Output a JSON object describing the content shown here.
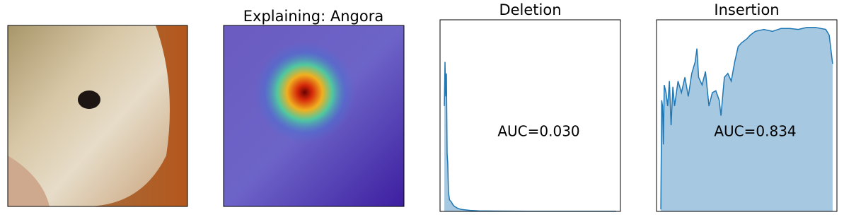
{
  "heatmap_title": "Explaining: Angora",
  "chart_data": [
    {
      "type": "area",
      "title": "Deletion",
      "annotation": "AUC=0.030",
      "color": "#1f77b4",
      "fill": "#a6c8e0",
      "xlim": [
        -0.025,
        1.025
      ],
      "ylim": [
        0,
        1
      ],
      "x": [
        0,
        0.004,
        0.008,
        0.012,
        0.016,
        0.02,
        0.024,
        0.03,
        0.04,
        0.05,
        0.06,
        0.08,
        0.1,
        0.15,
        0.2,
        0.3,
        0.5,
        0.7,
        1.0
      ],
      "values": [
        0.55,
        0.78,
        0.6,
        0.72,
        0.3,
        0.25,
        0.1,
        0.06,
        0.05,
        0.035,
        0.025,
        0.015,
        0.01,
        0.005,
        0.003,
        0.002,
        0.001,
        0.001,
        0.001
      ]
    },
    {
      "type": "area",
      "title": "Insertion",
      "annotation": "AUC=0.834",
      "color": "#1f77b4",
      "fill": "#a6c8e0",
      "xlim": [
        -0.025,
        1.025
      ],
      "ylim": [
        0,
        1
      ],
      "x": [
        0,
        0.005,
        0.01,
        0.015,
        0.02,
        0.03,
        0.04,
        0.05,
        0.06,
        0.07,
        0.08,
        0.1,
        0.12,
        0.14,
        0.16,
        0.18,
        0.2,
        0.21,
        0.22,
        0.24,
        0.26,
        0.28,
        0.3,
        0.32,
        0.34,
        0.35,
        0.37,
        0.39,
        0.41,
        0.43,
        0.45,
        0.47,
        0.5,
        0.52,
        0.55,
        0.6,
        0.65,
        0.7,
        0.75,
        0.8,
        0.85,
        0.9,
        0.93,
        0.96,
        0.98,
        1.0
      ],
      "values": [
        0.01,
        0.58,
        0.55,
        0.35,
        0.66,
        0.62,
        0.55,
        0.68,
        0.45,
        0.65,
        0.55,
        0.68,
        0.62,
        0.7,
        0.6,
        0.72,
        0.78,
        0.85,
        0.7,
        0.66,
        0.73,
        0.55,
        0.62,
        0.63,
        0.58,
        0.5,
        0.7,
        0.72,
        0.68,
        0.78,
        0.86,
        0.88,
        0.9,
        0.92,
        0.94,
        0.95,
        0.94,
        0.955,
        0.955,
        0.95,
        0.96,
        0.96,
        0.955,
        0.95,
        0.92,
        0.77
      ]
    }
  ]
}
